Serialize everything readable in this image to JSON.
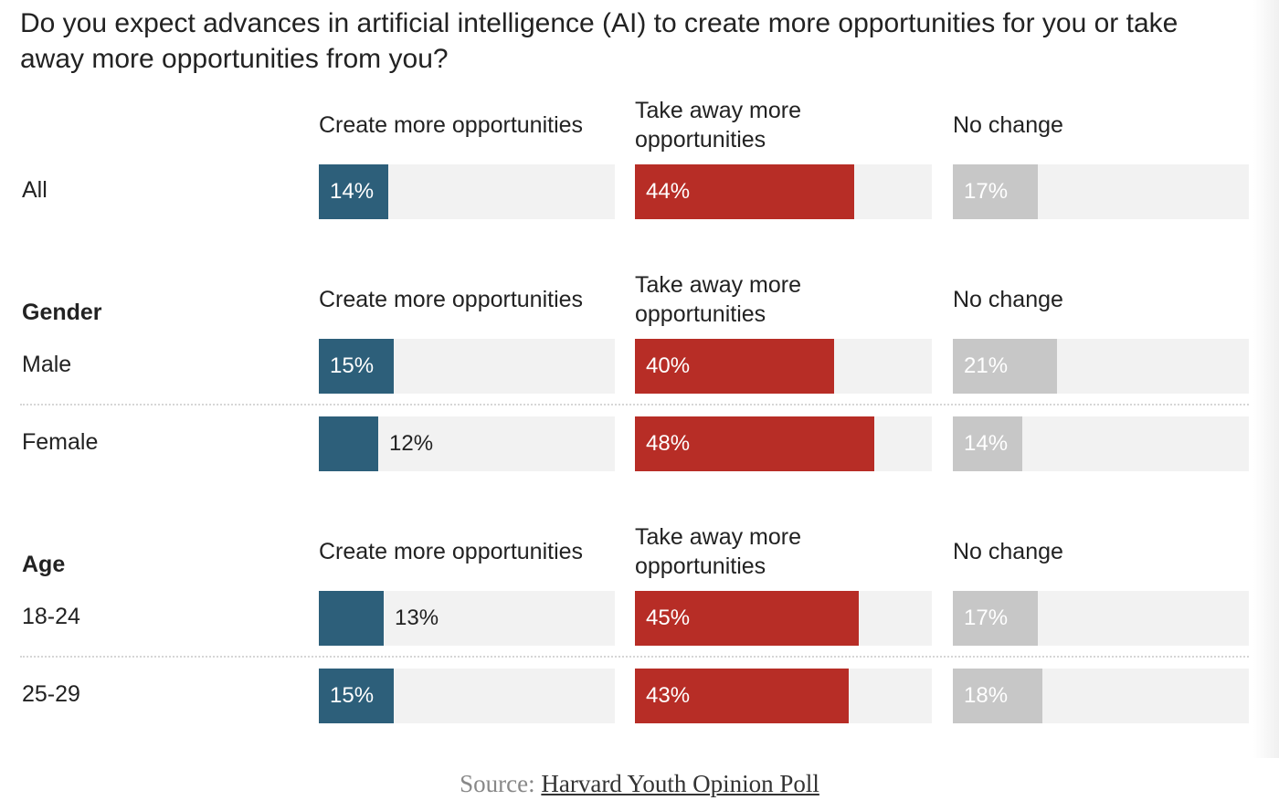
{
  "chart_data": {
    "type": "bar",
    "orientation": "horizontal",
    "title": "Do you expect advances in artificial intelligence (AI) to create more opportunities for you or take away more opportunities from you?",
    "series": [
      {
        "name": "Create more opportunities",
        "color": "#2d5f7a"
      },
      {
        "name": "Take away more opportunities",
        "color": "#b72d26"
      },
      {
        "name": "No change",
        "color": "#c7c7c7"
      }
    ],
    "column_headers": [
      [
        "Create more opportunities"
      ],
      [
        "Take away more",
        "opportunities"
      ],
      [
        "No change"
      ]
    ],
    "xlim": [
      0,
      100
    ],
    "groups": [
      {
        "label": "",
        "rows": [
          {
            "label": "All",
            "values": [
              14,
              44,
              17
            ],
            "labels": [
              "14%",
              "44%",
              "17%"
            ]
          }
        ]
      },
      {
        "label": "Gender",
        "rows": [
          {
            "label": "Male",
            "values": [
              15,
              40,
              21
            ],
            "labels": [
              "15%",
              "40%",
              "21%"
            ]
          },
          {
            "label": "Female",
            "values": [
              12,
              48,
              14
            ],
            "labels": [
              "12%",
              "48%",
              "14%"
            ]
          }
        ]
      },
      {
        "label": "Age",
        "rows": [
          {
            "label": "18-24",
            "values": [
              13,
              45,
              17
            ],
            "labels": [
              "13%",
              "45%",
              "17%"
            ]
          },
          {
            "label": "25-29",
            "values": [
              15,
              43,
              18
            ],
            "labels": [
              "15%",
              "43%",
              "18%"
            ]
          }
        ]
      }
    ]
  },
  "source": {
    "prefix": "Source: ",
    "link_text": "Harvard Youth Opinion Poll"
  },
  "colors": {
    "bar_track": "#f2f2f2",
    "inside_label_light": "#ffffff",
    "outside_label": "#222222"
  }
}
